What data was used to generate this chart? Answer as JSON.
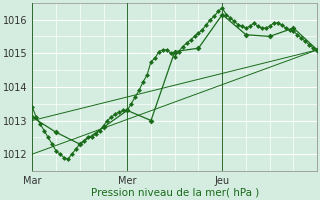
{
  "xlabel": "Pression niveau de la mer( hPa )",
  "bg_color": "#d4ede0",
  "grid_color": "#ffffff",
  "line_color": "#1a6b1a",
  "xlim": [
    0,
    72
  ],
  "ylim": [
    1011.5,
    1016.5
  ],
  "yticks": [
    1012,
    1013,
    1014,
    1015,
    1016
  ],
  "xtick_positions": [
    0,
    24,
    48,
    72
  ],
  "xtick_labels": [
    "Mar",
    "Mer",
    "Jeu",
    ""
  ],
  "vline_x": [
    0,
    24,
    48
  ],
  "series1_x": [
    0,
    1,
    2,
    3,
    4,
    5,
    6,
    7,
    8,
    9,
    10,
    11,
    12,
    13,
    14,
    15,
    16,
    17,
    18,
    19,
    20,
    21,
    22,
    23,
    24,
    25,
    26,
    27,
    28,
    29,
    30,
    31,
    32,
    33,
    34,
    35,
    36,
    37,
    38,
    39,
    40,
    41,
    42,
    43,
    44,
    45,
    46,
    47,
    48,
    49,
    50,
    51,
    52,
    53,
    54,
    55,
    56,
    57,
    58,
    59,
    60,
    61,
    62,
    63,
    64,
    65,
    66,
    67,
    68,
    69,
    70,
    71,
    72
  ],
  "series1_y": [
    1013.4,
    1013.1,
    1012.9,
    1012.7,
    1012.5,
    1012.3,
    1012.1,
    1012.0,
    1011.9,
    1011.85,
    1012.0,
    1012.15,
    1012.3,
    1012.4,
    1012.5,
    1012.5,
    1012.6,
    1012.7,
    1012.85,
    1013.0,
    1013.1,
    1013.2,
    1013.25,
    1013.3,
    1013.3,
    1013.5,
    1013.7,
    1013.9,
    1014.15,
    1014.35,
    1014.75,
    1014.85,
    1015.05,
    1015.1,
    1015.1,
    1015.0,
    1014.9,
    1015.05,
    1015.2,
    1015.3,
    1015.4,
    1015.5,
    1015.6,
    1015.7,
    1015.85,
    1016.0,
    1016.1,
    1016.25,
    1016.35,
    1016.15,
    1016.05,
    1015.95,
    1015.85,
    1015.8,
    1015.75,
    1015.8,
    1015.9,
    1015.8,
    1015.75,
    1015.75,
    1015.8,
    1015.9,
    1015.9,
    1015.85,
    1015.75,
    1015.7,
    1015.65,
    1015.55,
    1015.45,
    1015.35,
    1015.25,
    1015.15,
    1015.1
  ],
  "series2_x": [
    0,
    6,
    12,
    18,
    24,
    30,
    36,
    42,
    48,
    54,
    60,
    66,
    72
  ],
  "series2_y": [
    1013.1,
    1012.65,
    1012.3,
    1012.8,
    1013.3,
    1013.0,
    1015.05,
    1015.15,
    1016.15,
    1015.55,
    1015.5,
    1015.75,
    1015.1
  ],
  "trend1_x": [
    0,
    72
  ],
  "trend1_y": [
    1013.0,
    1015.1
  ],
  "trend2_x": [
    0,
    72
  ],
  "trend2_y": [
    1012.0,
    1015.1
  ],
  "markersize": 2.5
}
